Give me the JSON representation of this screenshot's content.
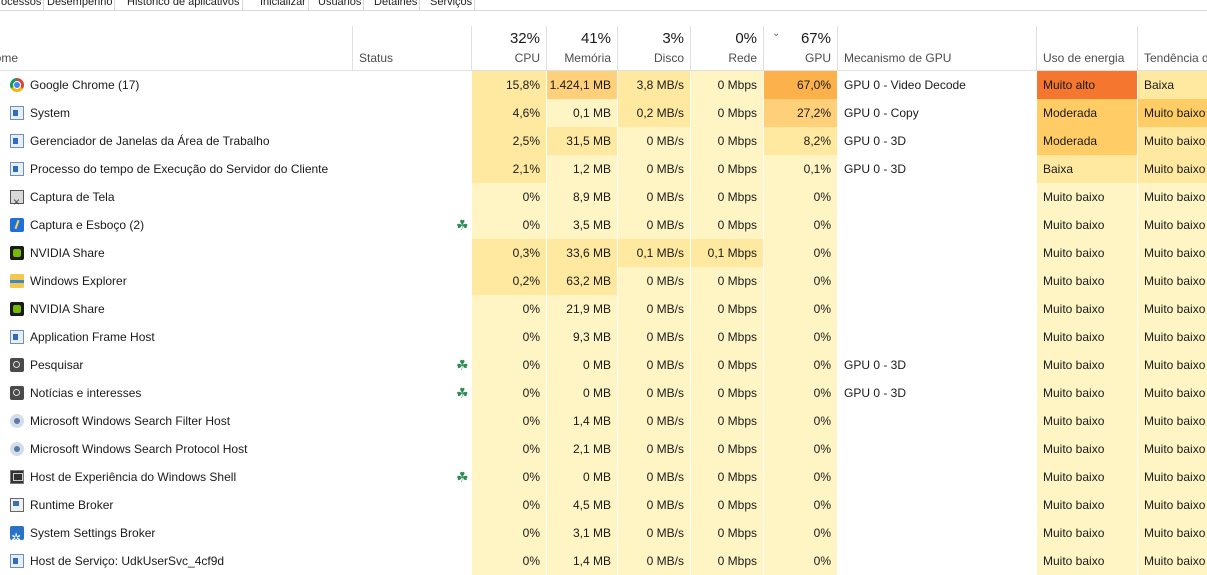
{
  "tabs": [
    "Processos",
    "Desempenho",
    "Histórico de aplicativos",
    "Inicializar",
    "Usuários",
    "Detalhes",
    "Serviços"
  ],
  "header": {
    "name": "Nome",
    "status": "Status",
    "cpu": {
      "pct": "32%",
      "label": "CPU"
    },
    "mem": {
      "pct": "41%",
      "label": "Memória"
    },
    "disk": {
      "pct": "3%",
      "label": "Disco"
    },
    "net": {
      "pct": "0%",
      "label": "Rede"
    },
    "gpu": {
      "pct": "67%",
      "label": "GPU"
    },
    "gpu_engine": "Mecanismo de GPU",
    "power": "Uso de energia",
    "trend": "Tendência de uso de energia"
  },
  "colors": {
    "heat_light": "#fff4c4",
    "heat_mid": "#ffe9a0",
    "heat_strong": "#ffd07a",
    "heat_max": "#fcb14a",
    "power_very_high": "#f4762f",
    "power_moderate": "#ffcc66",
    "power_low": "#ffe9a0",
    "power_very_low": "#fff4c4"
  },
  "rows": [
    {
      "icon": "chrome-icon",
      "name": "Google Chrome (17)",
      "leaf": false,
      "cpu": "15,8%",
      "mem": "1.424,1 MB",
      "disk": "3,8 MB/s",
      "net": "0 Mbps",
      "gpu": "67,0%",
      "engine": "GPU 0 - Video Decode",
      "power": "Muito alto",
      "trend": "Baixa",
      "cpuH": "mid",
      "memH": "strong",
      "diskH": "mid",
      "netH": "light",
      "gpuH": "max",
      "powerC": "power_very_high",
      "trendC": "power_low"
    },
    {
      "icon": "window-icon",
      "name": "System",
      "leaf": false,
      "cpu": "4,6%",
      "mem": "0,1 MB",
      "disk": "0,2 MB/s",
      "net": "0 Mbps",
      "gpu": "27,2%",
      "engine": "GPU 0 - Copy",
      "power": "Moderada",
      "trend": "Muito baixo",
      "cpuH": "mid",
      "memH": "light",
      "diskH": "mid",
      "netH": "light",
      "gpuH": "strong",
      "powerC": "power_moderate",
      "trendC": "power_moderate"
    },
    {
      "icon": "window-icon",
      "name": "Gerenciador de Janelas da Área de Trabalho",
      "leaf": false,
      "cpu": "2,5%",
      "mem": "31,5 MB",
      "disk": "0 MB/s",
      "net": "0 Mbps",
      "gpu": "8,2%",
      "engine": "GPU 0 - 3D",
      "power": "Moderada",
      "trend": "Muito baixo",
      "cpuH": "mid",
      "memH": "mid",
      "diskH": "light",
      "netH": "light",
      "gpuH": "mid",
      "powerC": "power_moderate",
      "trendC": "power_low"
    },
    {
      "icon": "window-icon",
      "name": "Processo do tempo de Execução do Servidor do Cliente",
      "leaf": false,
      "cpu": "2,1%",
      "mem": "1,2 MB",
      "disk": "0 MB/s",
      "net": "0 Mbps",
      "gpu": "0,1%",
      "engine": "GPU 0 - 3D",
      "power": "Baixa",
      "trend": "Muito baixo",
      "cpuH": "mid",
      "memH": "light",
      "diskH": "light",
      "netH": "light",
      "gpuH": "light",
      "powerC": "power_low",
      "trendC": "power_low"
    },
    {
      "icon": "snip-icon",
      "name": "Captura de Tela",
      "leaf": false,
      "cpu": "0%",
      "mem": "8,9 MB",
      "disk": "0 MB/s",
      "net": "0 Mbps",
      "gpu": "0%",
      "engine": "",
      "power": "Muito baixo",
      "trend": "Muito baixo",
      "cpuH": "light",
      "memH": "light",
      "diskH": "light",
      "netH": "light",
      "gpuH": "light",
      "powerC": "power_very_low",
      "trendC": "power_very_low"
    },
    {
      "icon": "sketch-icon",
      "name": "Captura e Esboço (2)",
      "leaf": true,
      "cpu": "0%",
      "mem": "3,5 MB",
      "disk": "0 MB/s",
      "net": "0 Mbps",
      "gpu": "0%",
      "engine": "",
      "power": "Muito baixo",
      "trend": "Muito baixo",
      "cpuH": "light",
      "memH": "light",
      "diskH": "light",
      "netH": "light",
      "gpuH": "light",
      "powerC": "power_very_low",
      "trendC": "power_very_low"
    },
    {
      "icon": "nvidia-icon",
      "name": "NVIDIA Share",
      "leaf": false,
      "cpu": "0,3%",
      "mem": "33,6 MB",
      "disk": "0,1 MB/s",
      "net": "0,1 Mbps",
      "gpu": "0%",
      "engine": "",
      "power": "Muito baixo",
      "trend": "Muito baixo",
      "cpuH": "mid",
      "memH": "mid",
      "diskH": "mid",
      "netH": "mid",
      "gpuH": "light",
      "powerC": "power_very_low",
      "trendC": "power_very_low"
    },
    {
      "icon": "folder-icon",
      "name": "Windows Explorer",
      "leaf": false,
      "cpu": "0,2%",
      "mem": "63,2 MB",
      "disk": "0 MB/s",
      "net": "0 Mbps",
      "gpu": "0%",
      "engine": "",
      "power": "Muito baixo",
      "trend": "Muito baixo",
      "cpuH": "mid",
      "memH": "mid",
      "diskH": "light",
      "netH": "light",
      "gpuH": "light",
      "powerC": "power_very_low",
      "trendC": "power_very_low"
    },
    {
      "icon": "nvidia-icon",
      "name": "NVIDIA Share",
      "leaf": false,
      "cpu": "0%",
      "mem": "21,9 MB",
      "disk": "0 MB/s",
      "net": "0 Mbps",
      "gpu": "0%",
      "engine": "",
      "power": "Muito baixo",
      "trend": "Muito baixo",
      "cpuH": "light",
      "memH": "light",
      "diskH": "light",
      "netH": "light",
      "gpuH": "light",
      "powerC": "power_very_low",
      "trendC": "power_very_low"
    },
    {
      "icon": "window-icon",
      "name": "Application Frame Host",
      "leaf": false,
      "cpu": "0%",
      "mem": "9,3 MB",
      "disk": "0 MB/s",
      "net": "0 Mbps",
      "gpu": "0%",
      "engine": "",
      "power": "Muito baixo",
      "trend": "Muito baixo",
      "cpuH": "light",
      "memH": "light",
      "diskH": "light",
      "netH": "light",
      "gpuH": "light",
      "powerC": "power_very_low",
      "trendC": "power_very_low"
    },
    {
      "icon": "search-icon",
      "name": "Pesquisar",
      "leaf": true,
      "cpu": "0%",
      "mem": "0 MB",
      "disk": "0 MB/s",
      "net": "0 Mbps",
      "gpu": "0%",
      "engine": "GPU 0 - 3D",
      "power": "Muito baixo",
      "trend": "Muito baixo",
      "cpuH": "light",
      "memH": "light",
      "diskH": "light",
      "netH": "light",
      "gpuH": "light",
      "powerC": "power_very_low",
      "trendC": "power_very_low"
    },
    {
      "icon": "search-icon",
      "name": "Notícias e interesses",
      "leaf": true,
      "cpu": "0%",
      "mem": "0 MB",
      "disk": "0 MB/s",
      "net": "0 Mbps",
      "gpu": "0%",
      "engine": "GPU 0 - 3D",
      "power": "Muito baixo",
      "trend": "Muito baixo",
      "cpuH": "light",
      "memH": "light",
      "diskH": "light",
      "netH": "light",
      "gpuH": "light",
      "powerC": "power_very_low",
      "trendC": "power_very_low"
    },
    {
      "icon": "gear-search-icon",
      "name": "Microsoft Windows Search Filter Host",
      "leaf": false,
      "cpu": "0%",
      "mem": "1,4 MB",
      "disk": "0 MB/s",
      "net": "0 Mbps",
      "gpu": "0%",
      "engine": "",
      "power": "Muito baixo",
      "trend": "Muito baixo",
      "cpuH": "light",
      "memH": "light",
      "diskH": "light",
      "netH": "light",
      "gpuH": "light",
      "powerC": "power_very_low",
      "trendC": "power_very_low"
    },
    {
      "icon": "gear-search-icon",
      "name": "Microsoft Windows Search Protocol Host",
      "leaf": false,
      "cpu": "0%",
      "mem": "2,1 MB",
      "disk": "0 MB/s",
      "net": "0 Mbps",
      "gpu": "0%",
      "engine": "",
      "power": "Muito baixo",
      "trend": "Muito baixo",
      "cpuH": "light",
      "memH": "light",
      "diskH": "light",
      "netH": "light",
      "gpuH": "light",
      "powerC": "power_very_low",
      "trendC": "power_very_low"
    },
    {
      "icon": "shell-icon",
      "name": "Host de Experiência do Windows Shell",
      "leaf": true,
      "cpu": "0%",
      "mem": "0 MB",
      "disk": "0 MB/s",
      "net": "0 Mbps",
      "gpu": "0%",
      "engine": "",
      "power": "Muito baixo",
      "trend": "Muito baixo",
      "cpuH": "light",
      "memH": "light",
      "diskH": "light",
      "netH": "light",
      "gpuH": "light",
      "powerC": "power_very_low",
      "trendC": "power_very_low"
    },
    {
      "icon": "broker-icon",
      "name": "Runtime Broker",
      "leaf": false,
      "cpu": "0%",
      "mem": "4,5 MB",
      "disk": "0 MB/s",
      "net": "0 Mbps",
      "gpu": "0%",
      "engine": "",
      "power": "Muito baixo",
      "trend": "Muito baixo",
      "cpuH": "light",
      "memH": "light",
      "diskH": "light",
      "netH": "light",
      "gpuH": "light",
      "powerC": "power_very_low",
      "trendC": "power_very_low"
    },
    {
      "icon": "settings-icon",
      "name": "System Settings Broker",
      "leaf": false,
      "cpu": "0%",
      "mem": "3,1 MB",
      "disk": "0 MB/s",
      "net": "0 Mbps",
      "gpu": "0%",
      "engine": "",
      "power": "Muito baixo",
      "trend": "Muito baixo",
      "cpuH": "light",
      "memH": "light",
      "diskH": "light",
      "netH": "light",
      "gpuH": "light",
      "powerC": "power_very_low",
      "trendC": "power_very_low"
    },
    {
      "icon": "window-icon",
      "name": "Host de Serviço: UdkUserSvc_4cf9d",
      "leaf": false,
      "cpu": "0%",
      "mem": "1,4 MB",
      "disk": "0 MB/s",
      "net": "0 Mbps",
      "gpu": "0%",
      "engine": "",
      "power": "Muito baixo",
      "trend": "Muito baixo",
      "cpuH": "light",
      "memH": "light",
      "diskH": "light",
      "netH": "light",
      "gpuH": "light",
      "powerC": "power_very_low",
      "trendC": "power_very_low"
    }
  ]
}
